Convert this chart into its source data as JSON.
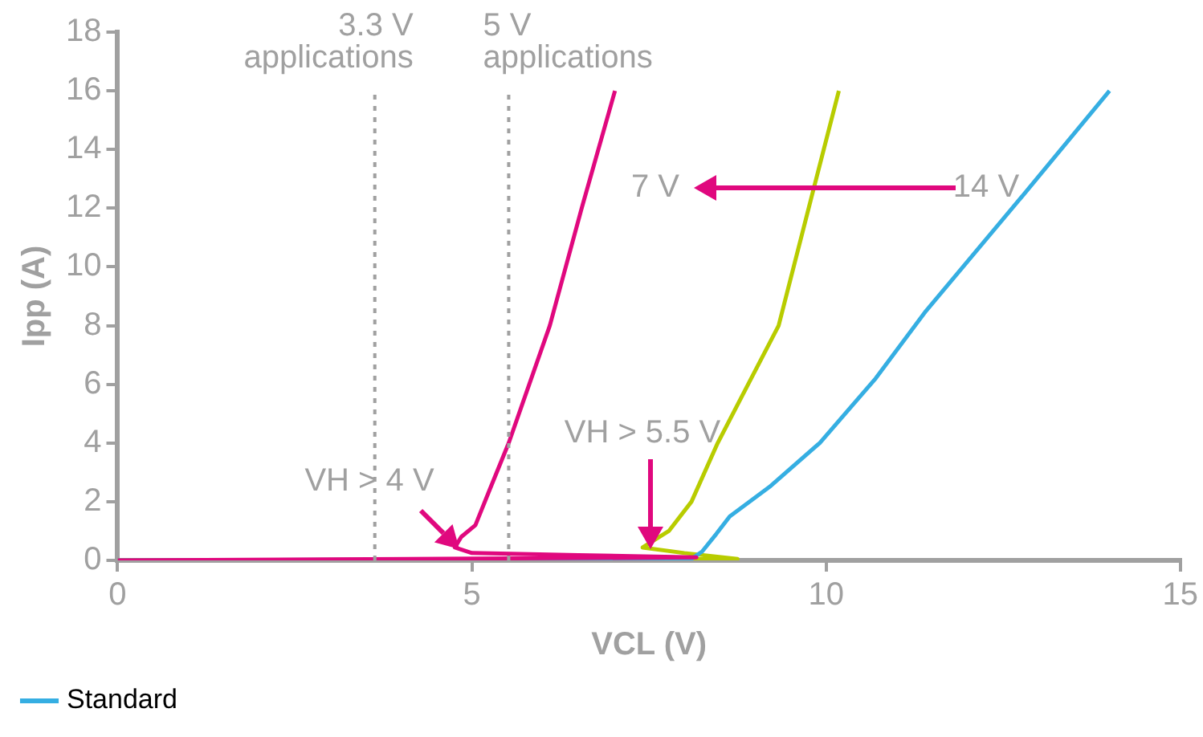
{
  "chart_data": {
    "type": "line",
    "xlabel": "VCL (V)",
    "ylabel": "Ipp (A)",
    "xlim": [
      0,
      15
    ],
    "xticks": [
      0,
      5,
      10,
      15
    ],
    "ylim": [
      0,
      18
    ],
    "yticks": [
      0,
      2,
      4,
      6,
      8,
      10,
      12,
      14,
      16,
      18
    ],
    "grid": false,
    "legend": "bottom left",
    "marker": "none",
    "line_style": "solid",
    "series": [
      {
        "color": "#e0087e",
        "x": [
          0,
          8.17,
          6.5,
          5.0,
          4.76,
          4.85,
          5.05,
          5.25,
          5.52,
          6.1,
          6.55,
          7.02
        ],
        "values": [
          0,
          0.1,
          0.18,
          0.25,
          0.44,
          0.8,
          1.2,
          2.4,
          4,
          8,
          12,
          16
        ]
      },
      {
        "name": "Standard",
        "color": "#35aee2",
        "x": [
          0,
          8.1,
          8.25,
          8.45,
          8.64,
          9.2,
          9.91,
          10.7,
          11.41,
          12.8,
          14.0
        ],
        "values": [
          0,
          0.05,
          0.3,
          0.9,
          1.5,
          2.5,
          4,
          6.2,
          8.5,
          12.5,
          16
        ]
      },
      {
        "color": "#b8cc00",
        "x": [
          0,
          8.75,
          8.0,
          7.41,
          7.78,
          8.1,
          8.47,
          8.9,
          9.33,
          9.86,
          10.18
        ],
        "values": [
          0,
          0.05,
          0.25,
          0.44,
          1,
          2,
          4,
          6,
          8,
          13,
          16
        ]
      }
    ],
    "ref_lines": [
      {
        "axis": "x",
        "value": 3.63,
        "label": "3.3 V\napplications",
        "color": "#a0a0a0",
        "line_style": "dotted"
      },
      {
        "axis": "x",
        "value": 5.52,
        "label": "5 V\napplications",
        "color": "#a0a0a0",
        "line_style": "dotted"
      }
    ],
    "annotations": [
      "7 V",
      "14 V",
      "VH > 4 V",
      "VH > 5.5 V"
    ]
  }
}
